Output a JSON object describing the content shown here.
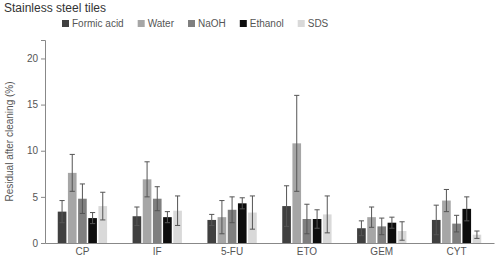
{
  "chart_data": {
    "type": "bar",
    "title": "Stainless steel tiles",
    "y_label": "Residual after cleaning (%)",
    "categories": [
      "CP",
      "IF",
      "5-FU",
      "ETO",
      "GEM",
      "CYT"
    ],
    "series": [
      {
        "name": "Formic acid",
        "color": "#404040",
        "values": [
          3.4,
          2.9,
          2.5,
          4.0,
          1.6,
          2.5
        ],
        "errors": [
          1.2,
          1.0,
          0.6,
          2.2,
          0.8,
          1.6
        ]
      },
      {
        "name": "Water",
        "color": "#a6a6a6",
        "values": [
          7.6,
          6.9,
          2.8,
          10.8,
          2.8,
          4.6
        ],
        "errors": [
          2.0,
          1.9,
          1.8,
          5.2,
          1.1,
          1.2
        ]
      },
      {
        "name": "NaOH",
        "color": "#7f7f7f",
        "values": [
          4.8,
          4.8,
          3.6,
          2.6,
          1.8,
          2.1
        ],
        "errors": [
          1.6,
          1.3,
          1.4,
          1.6,
          0.9,
          0.9
        ]
      },
      {
        "name": "Ethanol",
        "color": "#0d0d0d",
        "values": [
          2.7,
          2.8,
          4.3,
          2.6,
          2.2,
          3.7
        ],
        "errors": [
          0.6,
          0.6,
          0.6,
          1.0,
          0.6,
          1.3
        ]
      },
      {
        "name": "SDS",
        "color": "#d9d9d9",
        "values": [
          4.0,
          3.5,
          3.3,
          3.1,
          1.3,
          0.9
        ],
        "errors": [
          1.5,
          1.6,
          1.8,
          2.0,
          1.0,
          0.4
        ]
      }
    ],
    "ylim": [
      0,
      22
    ],
    "yticks": [
      0,
      5,
      10,
      15,
      20
    ],
    "legend": "top",
    "grid": false
  }
}
